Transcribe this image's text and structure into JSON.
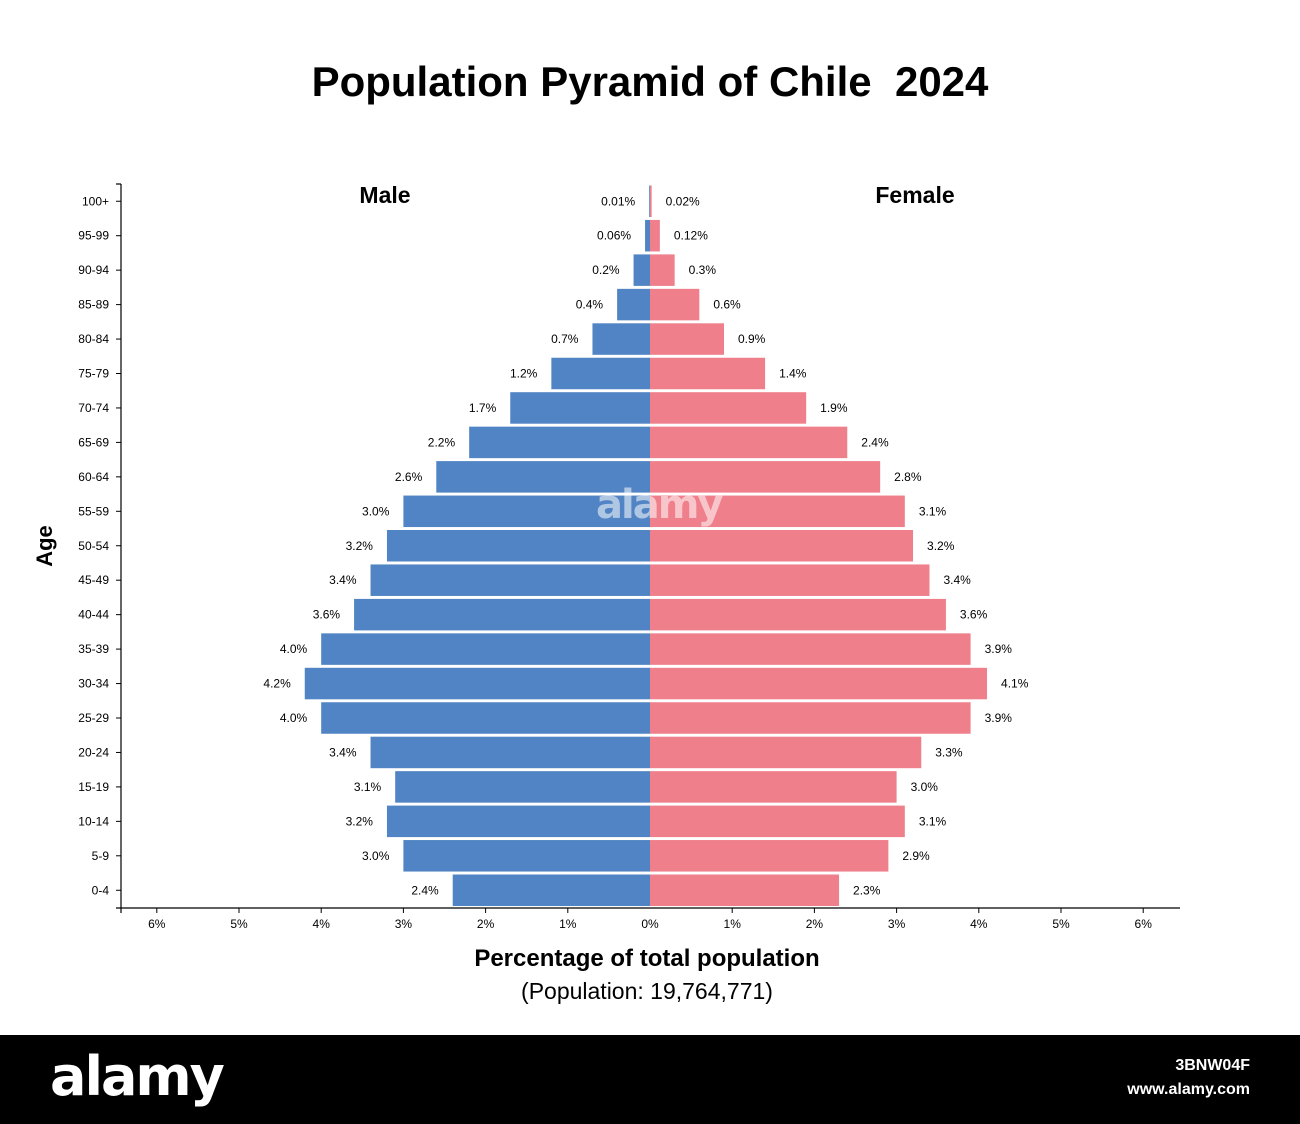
{
  "chart_data": {
    "type": "bar",
    "title": "Population Pyramid of Chile  2024",
    "subtitle": "(Population: 19,764,771)",
    "xlabel": "Percentage of total population",
    "ylabel": "Age",
    "xlim": [
      -6,
      6
    ],
    "x_ticks": [
      "6%",
      "5%",
      "4%",
      "3%",
      "2%",
      "1%",
      "0%",
      "1%",
      "2%",
      "3%",
      "4%",
      "5%",
      "6%"
    ],
    "categories": [
      "100+",
      "95-99",
      "90-94",
      "85-89",
      "80-84",
      "75-79",
      "70-74",
      "65-69",
      "60-64",
      "55-59",
      "50-54",
      "45-49",
      "40-44",
      "35-39",
      "30-34",
      "25-29",
      "20-24",
      "15-19",
      "10-14",
      "5-9",
      "0-4"
    ],
    "series": [
      {
        "name": "Male",
        "color": "#5084c4",
        "values": [
          0.01,
          0.06,
          0.2,
          0.4,
          0.7,
          1.2,
          1.7,
          2.2,
          2.6,
          3.0,
          3.2,
          3.4,
          3.6,
          4.0,
          4.2,
          4.0,
          3.4,
          3.1,
          3.2,
          3.0,
          2.4
        ],
        "labels": [
          "0.01%",
          "0.06%",
          "0.2%",
          "0.4%",
          "0.7%",
          "1.2%",
          "1.7%",
          "2.2%",
          "2.6%",
          "3.0%",
          "3.2%",
          "3.4%",
          "3.6%",
          "4.0%",
          "4.2%",
          "4.0%",
          "3.4%",
          "3.1%",
          "3.2%",
          "3.0%",
          "2.4%"
        ]
      },
      {
        "name": "Female",
        "color": "#ef7f8a",
        "values": [
          0.02,
          0.12,
          0.3,
          0.6,
          0.9,
          1.4,
          1.9,
          2.4,
          2.8,
          3.1,
          3.2,
          3.4,
          3.6,
          3.9,
          4.1,
          3.9,
          3.3,
          3.0,
          3.1,
          2.9,
          2.3
        ],
        "labels": [
          "0.02%",
          "0.12%",
          "0.3%",
          "0.6%",
          "0.9%",
          "1.4%",
          "1.9%",
          "2.4%",
          "2.8%",
          "3.1%",
          "3.2%",
          "3.4%",
          "3.6%",
          "3.9%",
          "4.1%",
          "3.9%",
          "3.3%",
          "3.0%",
          "3.1%",
          "2.9%",
          "2.3%"
        ]
      }
    ],
    "grid": false,
    "legend": "series names printed above each half"
  },
  "branding": {
    "logo": "alamy",
    "image_id": "3BNW04F",
    "url": "www.alamy.com",
    "watermark": "alamy"
  }
}
